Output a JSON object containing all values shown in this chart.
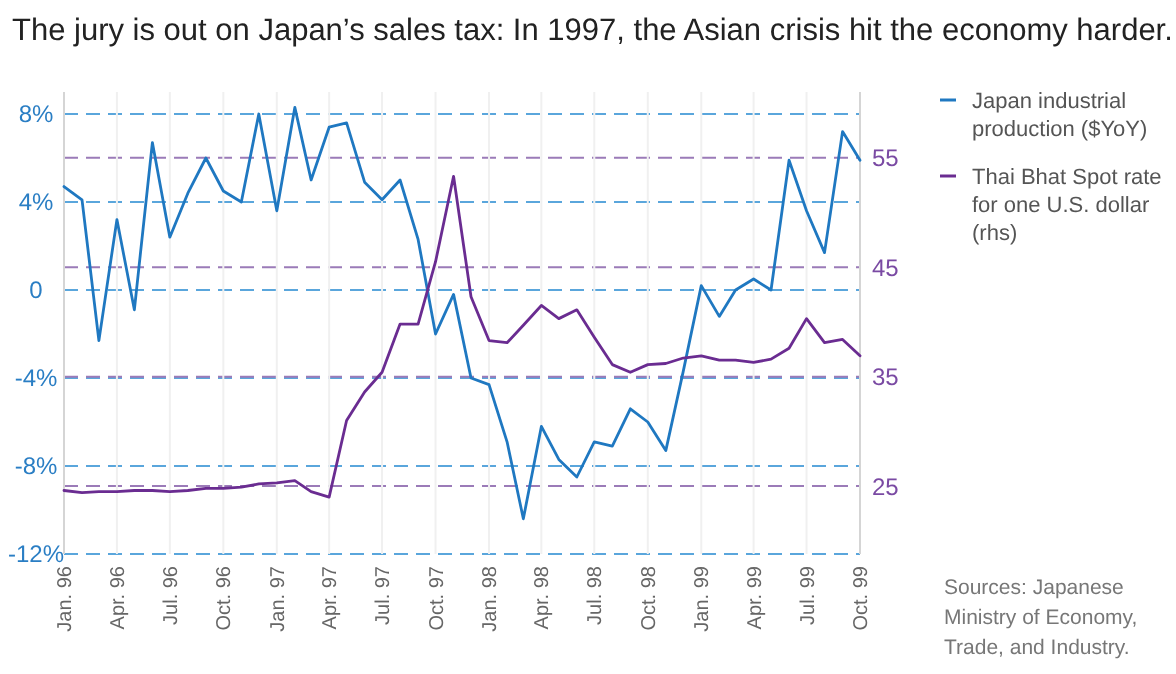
{
  "chart_data": {
    "type": "line",
    "title": "The jury is out on Japan’s sales tax: In 1997, the Asian crisis hit the economy harder.",
    "x": [
      "1996-01",
      "1996-02",
      "1996-03",
      "1996-04",
      "1996-05",
      "1996-06",
      "1996-07",
      "1996-08",
      "1996-09",
      "1996-10",
      "1996-11",
      "1996-12",
      "1997-01",
      "1997-02",
      "1997-03",
      "1997-04",
      "1997-05",
      "1997-06",
      "1997-07",
      "1997-08",
      "1997-09",
      "1997-10",
      "1997-11",
      "1997-12",
      "1998-01",
      "1998-02",
      "1998-03",
      "1998-04",
      "1998-05",
      "1998-06",
      "1998-07",
      "1998-08",
      "1998-09",
      "1998-10",
      "1998-11",
      "1998-12",
      "1999-01",
      "1999-02",
      "1999-03",
      "1999-04",
      "1999-05",
      "1999-06",
      "1999-07",
      "1999-08",
      "1999-09",
      "1999-10"
    ],
    "series": [
      {
        "name": "Japan industrial production ($YoY)",
        "color": "#1f78c1",
        "values": [
          4.7,
          4.1,
          -2.3,
          3.2,
          -0.9,
          6.7,
          2.4,
          4.4,
          6.0,
          4.5,
          4.0,
          8.0,
          3.6,
          8.3,
          5.0,
          7.4,
          7.6,
          4.9,
          4.1,
          5.0,
          2.3,
          -2.0,
          -0.2,
          -4.0,
          -4.3,
          -6.9,
          -10.4,
          -6.2,
          -7.7,
          -8.5,
          -6.9,
          -7.1,
          -5.4,
          -6.0,
          -7.3,
          -3.7,
          0.2,
          -1.2,
          0,
          0.5,
          0,
          5.9,
          3.6,
          1.7,
          7.2,
          5.9
        ]
      },
      {
        "name": "Thai Bhat Spot rate for one U.S. dollar (rhs)",
        "color": "#6a2c91",
        "axis": "y2",
        "values": [
          24.6,
          24.4,
          24.5,
          24.5,
          24.6,
          24.6,
          24.5,
          24.6,
          24.8,
          24.8,
          24.9,
          25.2,
          25.3,
          25.5,
          24.5,
          24.0,
          31.0,
          33.6,
          35.4,
          39.8,
          39.8,
          45.5,
          53.3,
          42.3,
          38.3,
          38.1,
          39.7,
          41.5,
          40.3,
          41.1,
          38.6,
          36.1,
          35.4,
          36.1,
          36.2,
          36.7,
          36.9,
          36.5,
          36.5,
          36.3,
          36.6,
          37.6,
          40.3,
          38.1,
          38.4,
          36.9
        ]
      }
    ],
    "xlim": [
      "1996-01",
      "1999-10"
    ],
    "xticks": [
      {
        "value": "1996-01",
        "label": "Jan. 96"
      },
      {
        "value": "1996-04",
        "label": "Apr. 96"
      },
      {
        "value": "1996-07",
        "label": "Jul. 96"
      },
      {
        "value": "1996-10",
        "label": "Oct. 96"
      },
      {
        "value": "1997-01",
        "label": "Jan. 97"
      },
      {
        "value": "1997-04",
        "label": "Apr. 97"
      },
      {
        "value": "1997-07",
        "label": "Jul. 97"
      },
      {
        "value": "1997-10",
        "label": "Oct. 97"
      },
      {
        "value": "1998-01",
        "label": "Jan. 98"
      },
      {
        "value": "1998-04",
        "label": "Apr. 98"
      },
      {
        "value": "1998-07",
        "label": "Jul. 98"
      },
      {
        "value": "1998-10",
        "label": "Oct. 98"
      },
      {
        "value": "1999-01",
        "label": "Jan. 99"
      },
      {
        "value": "1999-04",
        "label": "Apr. 99"
      },
      {
        "value": "1999-07",
        "label": "Jul. 99"
      },
      {
        "value": "1999-10",
        "label": "Oct. 99"
      }
    ],
    "ylim": [
      -12,
      9
    ],
    "yticks": [
      {
        "value": 8,
        "label": "8%"
      },
      {
        "value": 4,
        "label": "4%"
      },
      0,
      {
        "value": -4,
        "label": "-4%"
      },
      {
        "value": -8,
        "label": "-8%"
      },
      {
        "value": -12,
        "label": "-12%"
      }
    ],
    "y2lim": [
      18.8,
      61
    ],
    "y2ticks": [
      25,
      35,
      45,
      55
    ],
    "grid": true,
    "legend": "right",
    "line_style": "solid",
    "annotations": [
      "Sources: Japanese Ministry of Economy, Trade, and Industry."
    ]
  }
}
